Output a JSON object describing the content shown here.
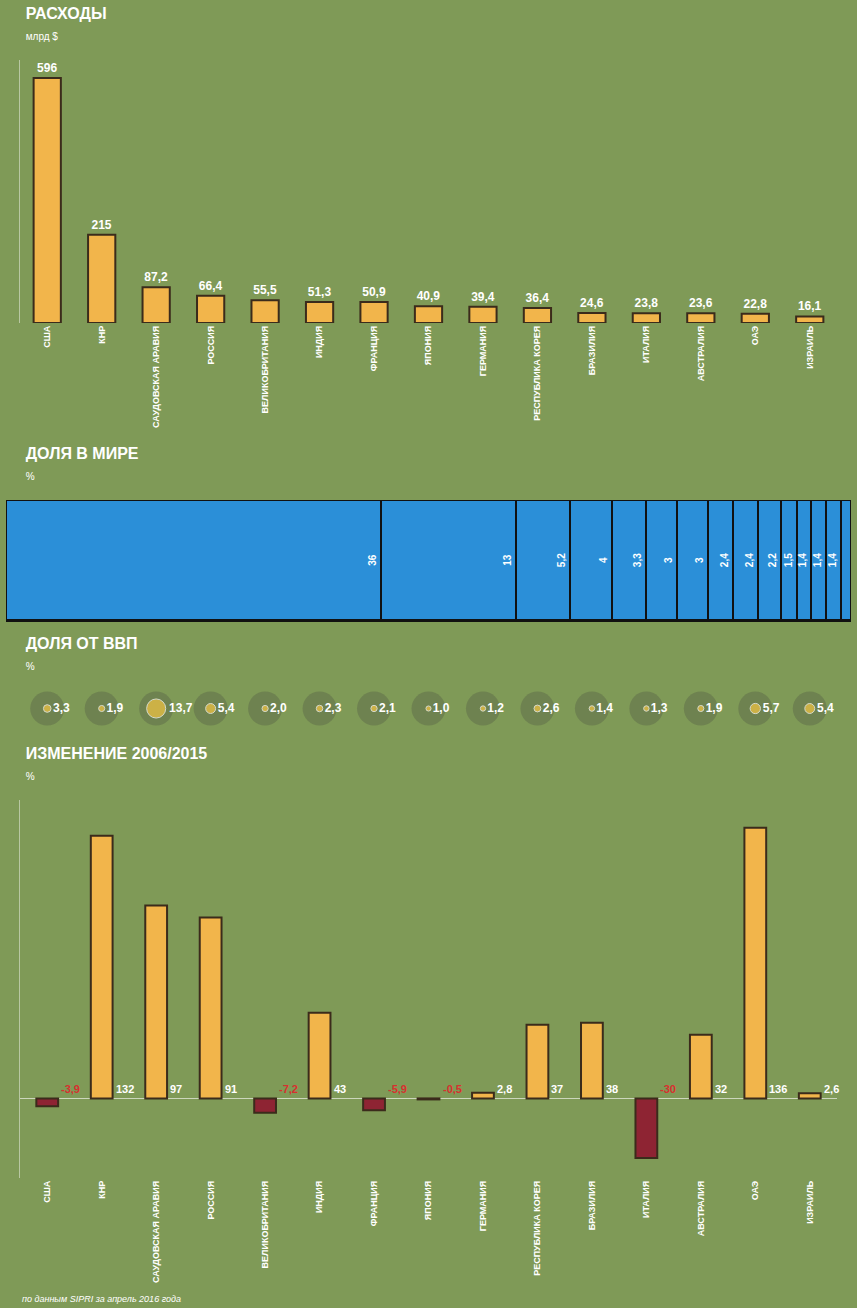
{
  "chart_data": [
    {
      "type": "bar",
      "title": "РАСХОДЫ",
      "subtitle": "млрд $",
      "categories": [
        "США",
        "КНР",
        "САУДОВСКАЯ АРАВИЯ",
        "РОССИЯ",
        "ВЕЛИКОБРИТАНИЯ",
        "ИНДИЯ",
        "ФРАНЦИЯ",
        "ЯПОНИЯ",
        "ГЕРМАНИЯ",
        "РЕСПУБЛИКА КОРЕЯ",
        "БРАЗИЛИЯ",
        "ИТАЛИЯ",
        "АВСТРАЛИЯ",
        "ОАЭ",
        "ИЗРАИЛЬ"
      ],
      "values": [
        596,
        215,
        87.2,
        66.4,
        55.5,
        51.3,
        50.9,
        40.9,
        39.4,
        36.4,
        24.6,
        23.8,
        23.6,
        22.8,
        16.1
      ],
      "value_labels": [
        "596",
        "215",
        "87,2",
        "66,4",
        "55,5",
        "51,3",
        "50,9",
        "40,9",
        "39,4",
        "36,4",
        "24,6",
        "23,8",
        "23,6",
        "22,8",
        "16,1"
      ],
      "color": "#f2b54b",
      "ylim": [
        0,
        640
      ],
      "yticks": [],
      "tick_labels": "x",
      "data_labels": true
    },
    {
      "type": "bar",
      "title": "ДОЛЯ В МИРЕ",
      "subtitle": "%",
      "orientation": "horizontal",
      "stacked": true,
      "values": [
        36,
        13,
        5.2,
        4,
        3.3,
        3,
        3,
        2.4,
        2.4,
        2.2,
        1.5,
        1.4,
        1.4,
        1.4,
        1.0
      ],
      "value_labels": [
        "36",
        "13",
        "5,2",
        "4",
        "3,3",
        "3",
        "3",
        "2,4",
        "2,4",
        "2,2",
        "1,5",
        "1,4",
        "1,4",
        "1,4",
        null
      ],
      "color": "#2b8fd8",
      "xlim": [
        0,
        81.2
      ],
      "xticks": [],
      "tick_labels": false,
      "data_labels": true
    },
    {
      "type": "scatter",
      "title": "ДОЛЯ ОТ ВВП",
      "subtitle": "%",
      "categories": [
        null,
        null,
        null,
        null,
        null,
        null,
        null,
        null,
        null,
        null,
        null,
        null,
        null,
        null,
        null
      ],
      "values": [
        3.3,
        1.9,
        13.7,
        5.4,
        2.0,
        2.3,
        2.1,
        1.0,
        1.2,
        2.6,
        1.4,
        1.3,
        1.9,
        5.7,
        5.4
      ],
      "value_labels": [
        "3,3",
        "1,9",
        "13,7",
        "5,4",
        "2,0",
        "2,3",
        "2,1",
        "1,0",
        "1,2",
        "2,6",
        "1,4",
        "1,3",
        "1,9",
        "5,7",
        "5,4"
      ],
      "color": "#f5c542",
      "marker": "circle",
      "tick_labels": false,
      "data_labels": true
    },
    {
      "type": "bar",
      "title": "ИЗМЕНЕНИЕ 2006/2015",
      "subtitle": "%",
      "categories": [
        "США",
        "КНР",
        "САУДОВСКАЯ АРАВИЯ",
        "РОССИЯ",
        "ВЕЛИКОБРИТАНИЯ",
        "ИНДИЯ",
        "ФРАНЦИЯ",
        "ЯПОНИЯ",
        "ГЕРМАНИЯ",
        "РЕСПУБЛИКА КОРЕЯ",
        "БРАЗИЛИЯ",
        "ИТАЛИЯ",
        "АВСТРАЛИЯ",
        "ОАЭ",
        "ИЗРАИЛЬ"
      ],
      "values": [
        -3.9,
        132,
        97,
        91,
        -7.2,
        43,
        -5.9,
        -0.5,
        2.8,
        37,
        38,
        -30,
        32,
        136,
        2.6
      ],
      "value_labels": [
        "-3,9",
        "132",
        "97",
        "91",
        "-7,2",
        "43",
        "-5,9",
        "-0,5",
        "2,8",
        "37",
        "38",
        "-30",
        "32",
        "136",
        "2,6"
      ],
      "colors": [
        "#8e2433",
        "#f2b54b",
        "#f2b54b",
        "#f2b54b",
        "#8e2433",
        "#f2b54b",
        "#8e2433",
        "#8e2433",
        "#f2b54b",
        "#f2b54b",
        "#f2b54b",
        "#8e2433",
        "#f2b54b",
        "#f2b54b",
        "#f2b54b"
      ],
      "ylim": [
        -40,
        150
      ],
      "yticks": [],
      "tick_labels": "x",
      "data_labels": true,
      "annotations": [
        "по данным SIPRI за апрель 2016 года"
      ]
    }
  ]
}
